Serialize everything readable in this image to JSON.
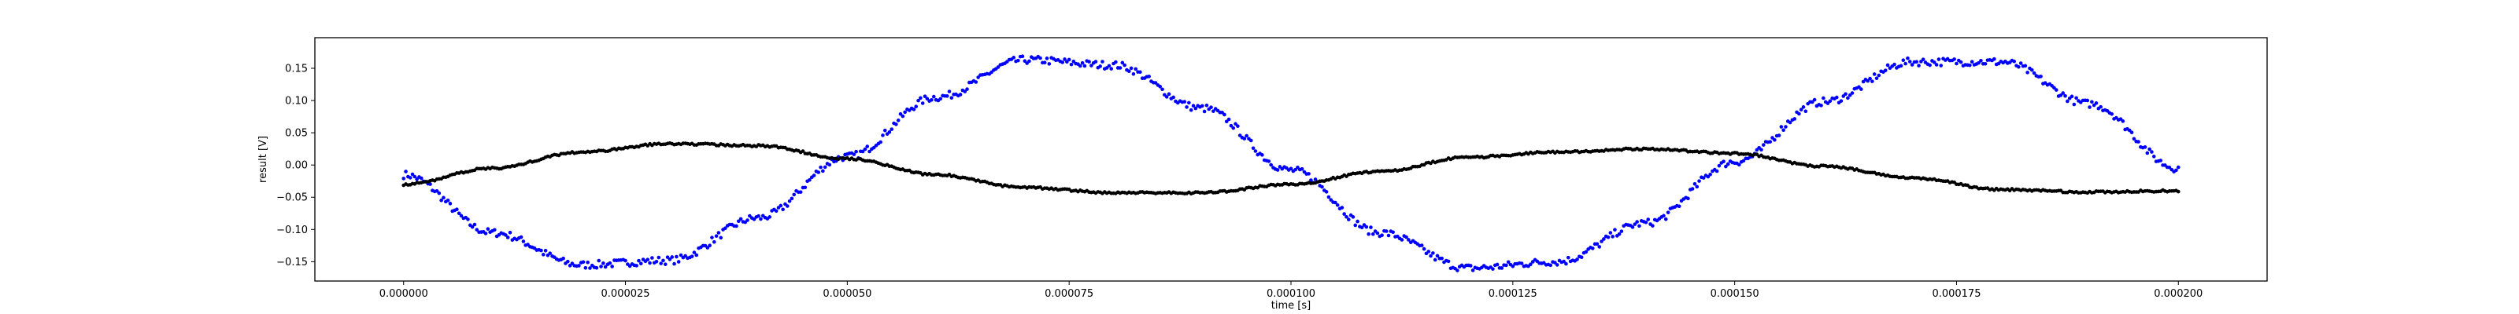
{
  "chart_data": {
    "type": "scatter",
    "title": "",
    "xlabel": "time [s]",
    "ylabel": "result [V]",
    "xlim": [
      -1e-05,
      0.00021
    ],
    "ylim": [
      -0.18,
      0.1975
    ],
    "grid": false,
    "x_ticks": [
      {
        "value": 0.0,
        "label": "0.000000"
      },
      {
        "value": 2.5e-05,
        "label": "0.000025"
      },
      {
        "value": 5e-05,
        "label": "0.000050"
      },
      {
        "value": 7.5e-05,
        "label": "0.000075"
      },
      {
        "value": 0.0001,
        "label": "0.000100"
      },
      {
        "value": 0.000125,
        "label": "0.000125"
      },
      {
        "value": 0.00015,
        "label": "0.000150"
      },
      {
        "value": 0.000175,
        "label": "0.000175"
      },
      {
        "value": 0.0002,
        "label": "0.000200"
      }
    ],
    "y_ticks": [
      {
        "value": 0.15,
        "label": "0.15"
      },
      {
        "value": 0.1,
        "label": "0.10"
      },
      {
        "value": 0.05,
        "label": "0.05"
      },
      {
        "value": 0.0,
        "label": "0.00"
      },
      {
        "value": -0.05,
        "label": "−0.05"
      },
      {
        "value": -0.1,
        "label": "−0.10"
      },
      {
        "value": -0.15,
        "label": "−0.15"
      }
    ],
    "series": [
      {
        "color": "#0000ff",
        "x": [
          0.0,
          1e-05,
          2e-05,
          3e-05,
          4e-05,
          5e-05,
          6e-05,
          7e-05,
          8e-05,
          9e-05,
          0.0001,
          0.00011,
          0.00012,
          0.00013,
          0.00014,
          0.00015,
          0.00016,
          0.00017,
          0.00018,
          0.00019,
          0.0002
        ],
        "values": [
          -0.015,
          -0.105,
          -0.155,
          -0.148,
          -0.082,
          0.013,
          0.105,
          0.163,
          0.155,
          0.088,
          -0.008,
          -0.105,
          -0.16,
          -0.15,
          -0.09,
          0.005,
          0.098,
          0.16,
          0.16,
          0.095,
          -0.005
        ]
      },
      {
        "color": "#000000",
        "x": [
          0.0,
          1e-05,
          2e-05,
          3e-05,
          4e-05,
          5e-05,
          6e-05,
          7e-05,
          8e-05,
          9e-05,
          0.0001,
          0.00011,
          0.00012,
          0.00013,
          0.00014,
          0.00015,
          0.00016,
          0.00017,
          0.00018,
          0.00019,
          0.0002
        ],
        "values": [
          -0.03,
          -0.005,
          0.02,
          0.033,
          0.03,
          0.01,
          -0.015,
          -0.035,
          -0.043,
          -0.043,
          -0.03,
          -0.01,
          0.012,
          0.02,
          0.025,
          0.018,
          -0.002,
          -0.02,
          -0.038,
          -0.042,
          -0.04
        ]
      }
    ]
  }
}
